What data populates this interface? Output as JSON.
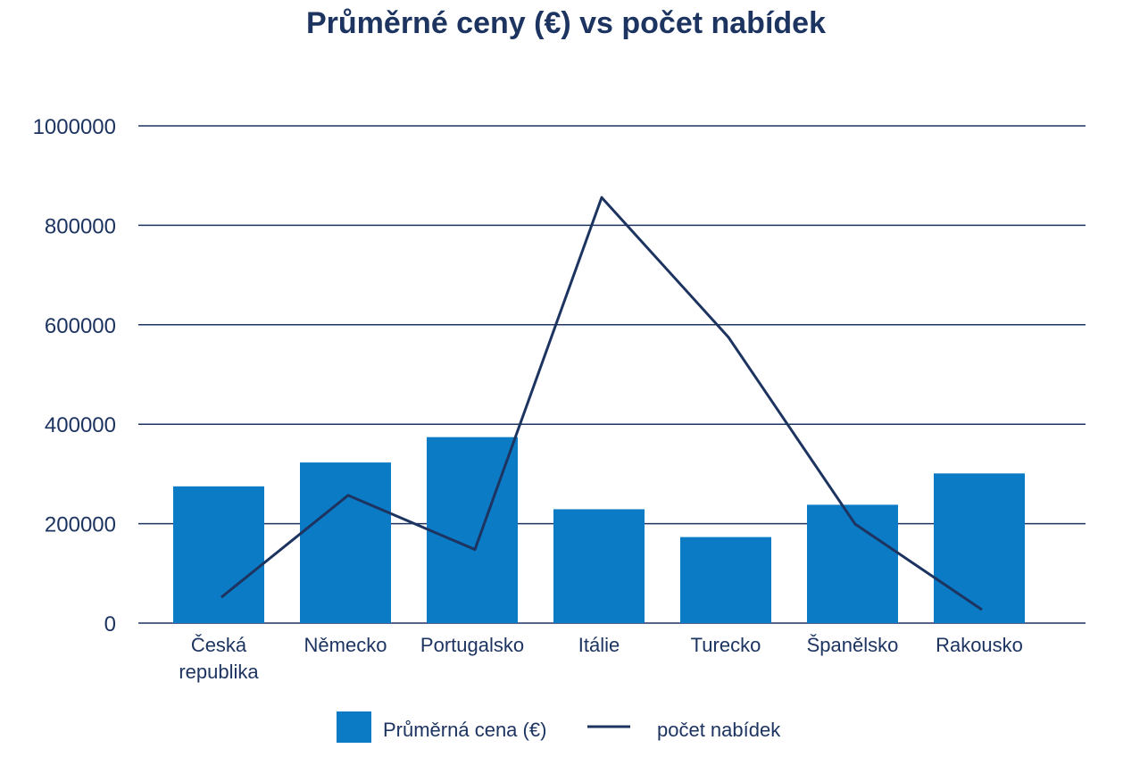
{
  "chart_data": {
    "type": "bar",
    "title": "Průměrné ceny (€) vs počet nabídek",
    "categories": [
      [
        "Česká",
        "republika"
      ],
      [
        "Německo"
      ],
      [
        "Portugalsko"
      ],
      [
        "Itálie"
      ],
      [
        "Turecko"
      ],
      [
        "Španělsko"
      ],
      [
        "Rakousko"
      ]
    ],
    "ylim": [
      0,
      1000000
    ],
    "yticks": [
      "0",
      "200000",
      "400000",
      "600000",
      "800000",
      "1000000"
    ],
    "ytick_values": [
      0,
      200000,
      400000,
      600000,
      800000,
      1000000
    ],
    "grid": true,
    "legend_position": "bottom",
    "series": [
      {
        "name": "Průměrná cena (€)",
        "kind": "bar",
        "color": "#0a7bc4",
        "values": [
          275000,
          323000,
          374000,
          229000,
          173000,
          238000,
          301000
        ]
      },
      {
        "name": "počet nabídek",
        "kind": "line",
        "color": "#1d3461",
        "values": [
          52000,
          257000,
          148000,
          856000,
          575000,
          199000,
          27000
        ]
      }
    ]
  }
}
